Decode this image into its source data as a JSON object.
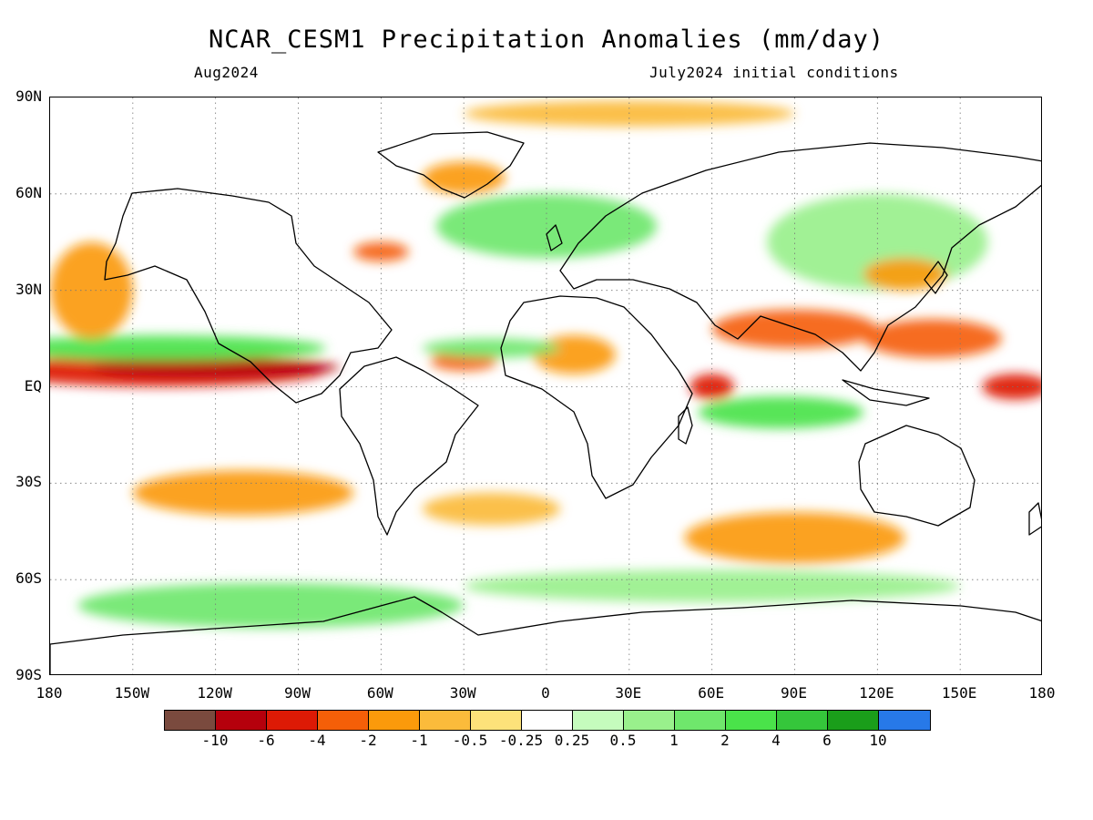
{
  "title": "NCAR_CESM1 Precipitation Anomalies (mm/day)",
  "subtitle_left": "Aug2024",
  "subtitle_right": "July2024 initial conditions",
  "lat_labels": [
    "90N",
    "60N",
    "30N",
    "EQ",
    "30S",
    "60S",
    "90S"
  ],
  "lon_labels": [
    "180",
    "150W",
    "120W",
    "90W",
    "60W",
    "30W",
    "0",
    "30E",
    "60E",
    "90E",
    "120E",
    "150E",
    "180"
  ],
  "colorbar": {
    "colors": [
      "#7a4a3e",
      "#b5000c",
      "#dd1a05",
      "#f55f08",
      "#fb9a0b",
      "#fbbb3b",
      "#fde27a",
      "#ffffff",
      "#c5fcbd",
      "#99f08c",
      "#6fe76c",
      "#4ae34a",
      "#35c63b",
      "#1a9e1a",
      "#2779e8"
    ],
    "labels": [
      "-10",
      "-6",
      "-4",
      "-2",
      "-1",
      "-0.5",
      "-0.25",
      "0.25",
      "0.5",
      "1",
      "2",
      "4",
      "6",
      "10"
    ]
  },
  "map_data": {
    "extent": {
      "lon": [
        -180,
        180
      ],
      "lat": [
        -90,
        90
      ]
    },
    "gridlines": "dotted every 30 degrees",
    "anomaly_regions": [
      {
        "lon": -140,
        "lat": 5,
        "rx": 60,
        "ry": 5,
        "level": "-4"
      },
      {
        "lon": -120,
        "lat": 6,
        "rx": 45,
        "ry": 3,
        "level": "-6"
      },
      {
        "lon": -140,
        "lat": 12,
        "rx": 60,
        "ry": 4,
        "level": "2"
      },
      {
        "lon": -110,
        "lat": -33,
        "rx": 40,
        "ry": 7,
        "level": "-1"
      },
      {
        "lon": -165,
        "lat": 30,
        "rx": 15,
        "ry": 15,
        "level": "-1"
      },
      {
        "lon": 90,
        "lat": 18,
        "rx": 30,
        "ry": 6,
        "level": "-2"
      },
      {
        "lon": 140,
        "lat": 15,
        "rx": 25,
        "ry": 6,
        "level": "-2"
      },
      {
        "lon": 60,
        "lat": 0,
        "rx": 8,
        "ry": 4,
        "level": "-4"
      },
      {
        "lon": 85,
        "lat": -8,
        "rx": 30,
        "ry": 5,
        "level": "2"
      },
      {
        "lon": 170,
        "lat": 0,
        "rx": 12,
        "ry": 4,
        "level": "-4"
      },
      {
        "lon": 90,
        "lat": -47,
        "rx": 40,
        "ry": 8,
        "level": "-1"
      },
      {
        "lon": -20,
        "lat": -38,
        "rx": 25,
        "ry": 5,
        "level": "-0.5"
      },
      {
        "lon": 10,
        "lat": 10,
        "rx": 15,
        "ry": 6,
        "level": "-1"
      },
      {
        "lon": -30,
        "lat": 8,
        "rx": 12,
        "ry": 3,
        "level": "-2"
      },
      {
        "lon": -20,
        "lat": 12,
        "rx": 25,
        "ry": 3,
        "level": "1"
      },
      {
        "lon": -100,
        "lat": -68,
        "rx": 70,
        "ry": 7,
        "level": "1"
      },
      {
        "lon": 60,
        "lat": -62,
        "rx": 90,
        "ry": 5,
        "level": "0.5"
      },
      {
        "lon": 120,
        "lat": 45,
        "rx": 40,
        "ry": 15,
        "level": "0.5"
      },
      {
        "lon": -60,
        "lat": 42,
        "rx": 10,
        "ry": 3,
        "level": "-2"
      },
      {
        "lon": -30,
        "lat": 65,
        "rx": 15,
        "ry": 5,
        "level": "-1"
      },
      {
        "lon": 30,
        "lat": 85,
        "rx": 60,
        "ry": 4,
        "level": "-0.5"
      },
      {
        "lon": 0,
        "lat": 50,
        "rx": 40,
        "ry": 10,
        "level": "1"
      },
      {
        "lon": 130,
        "lat": 35,
        "rx": 15,
        "ry": 5,
        "level": "-1"
      }
    ]
  }
}
